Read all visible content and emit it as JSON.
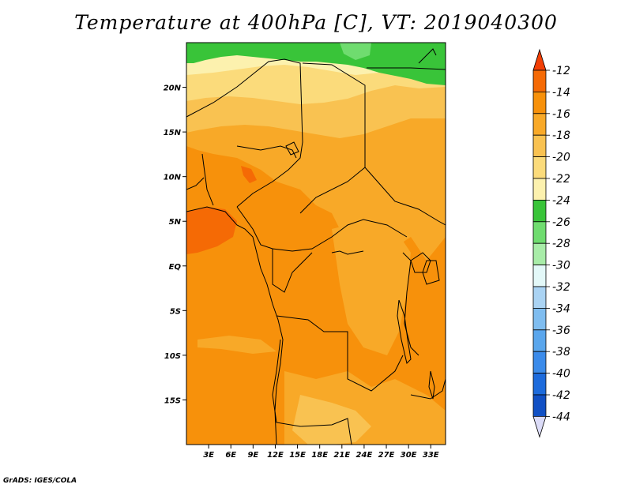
{
  "title": "Temperature at 400hPa [C], VT: 2019040300",
  "credit": "GrADS: IGES/COLA",
  "map": {
    "lon_range": [
      0,
      35
    ],
    "lat_range": [
      -20,
      25
    ],
    "lon_ticks": [
      {
        "value": 3,
        "label": "3E"
      },
      {
        "value": 6,
        "label": "6E"
      },
      {
        "value": 9,
        "label": "9E"
      },
      {
        "value": 12,
        "label": "12E"
      },
      {
        "value": 15,
        "label": "15E"
      },
      {
        "value": 18,
        "label": "18E"
      },
      {
        "value": 21,
        "label": "21E"
      },
      {
        "value": 24,
        "label": "24E"
      },
      {
        "value": 27,
        "label": "27E"
      },
      {
        "value": 30,
        "label": "30E"
      },
      {
        "value": 33,
        "label": "33E"
      }
    ],
    "lat_ticks": [
      {
        "value": 20,
        "label": "20N"
      },
      {
        "value": 15,
        "label": "15N"
      },
      {
        "value": 10,
        "label": "10N"
      },
      {
        "value": 5,
        "label": "5N"
      },
      {
        "value": 0,
        "label": "EQ"
      },
      {
        "value": -5,
        "label": "5S"
      },
      {
        "value": -10,
        "label": "10S"
      },
      {
        "value": -15,
        "label": "15S"
      }
    ]
  },
  "colorbar": {
    "levels": [
      "-12",
      "-14",
      "-16",
      "-18",
      "-20",
      "-22",
      "-24",
      "-26",
      "-28",
      "-30",
      "-32",
      "-34",
      "-36",
      "-38",
      "-40",
      "-42",
      "-44"
    ],
    "colors": [
      "#f56a05",
      "#f7910b",
      "#f8a928",
      "#f9c251",
      "#fbdb7b",
      "#fcf1ae",
      "#39c439",
      "#6fdc6f",
      "#a8eca8",
      "#e3f8f8",
      "#aad3f3",
      "#7fbdf0",
      "#5aa6ec",
      "#3b8bea",
      "#1d6bdc",
      "#1150c4",
      "#0d2085",
      "#dcdcf8"
    ],
    "top_color": "#f23f05"
  },
  "fields": {
    "warm_core": "#f56a05",
    "colors_key": "orange-yellow-green palette"
  }
}
